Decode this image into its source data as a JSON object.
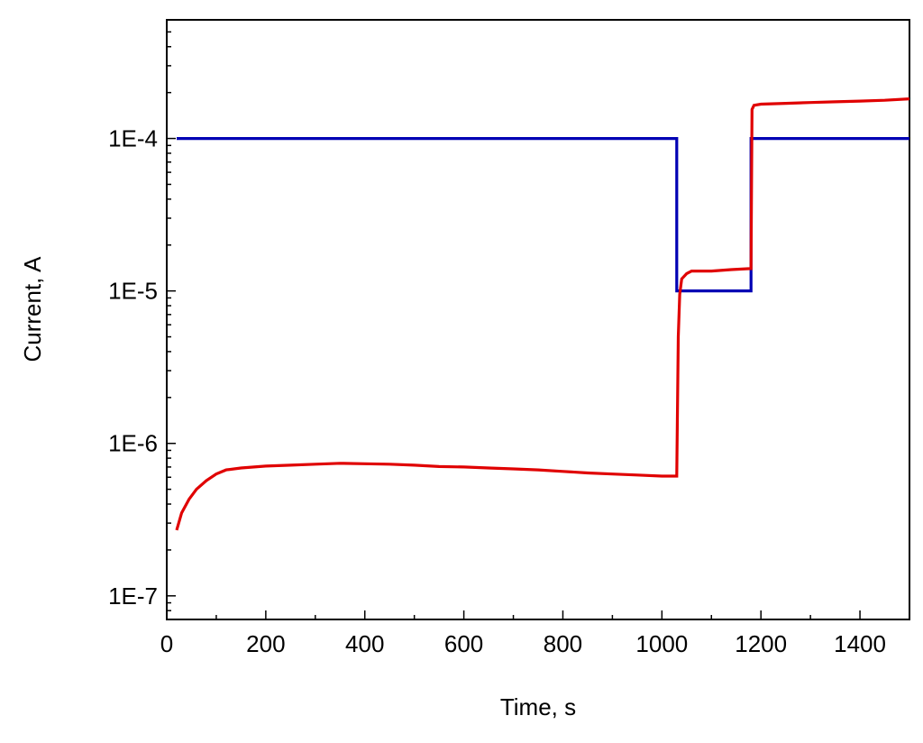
{
  "chart_data": {
    "type": "line",
    "title": "",
    "xlabel": "Time, s",
    "ylabel": "Current, A",
    "xlim": [
      0,
      1500
    ],
    "ylim": [
      7e-08,
      0.0006
    ],
    "yscale": "log",
    "grid": false,
    "legend": "none",
    "x_ticks": [
      {
        "value": 0,
        "label": "0"
      },
      {
        "value": 200,
        "label": "200"
      },
      {
        "value": 400,
        "label": "400"
      },
      {
        "value": 600,
        "label": "600"
      },
      {
        "value": 800,
        "label": "800"
      },
      {
        "value": 1000,
        "label": "1000"
      },
      {
        "value": 1200,
        "label": "1200"
      },
      {
        "value": 1400,
        "label": "1400"
      }
    ],
    "y_ticks": [
      {
        "value": 1e-07,
        "label": "1E-7"
      },
      {
        "value": 1e-06,
        "label": "1E-6"
      },
      {
        "value": 1e-05,
        "label": "1E-5"
      },
      {
        "value": 0.0001,
        "label": "1E-4"
      }
    ],
    "series": [
      {
        "color": "#0000b4",
        "x": [
          20,
          1030,
          1030,
          1180,
          1180,
          1500
        ],
        "y": [
          0.0001,
          0.0001,
          1e-05,
          1e-05,
          0.0001,
          0.0001
        ]
      },
      {
        "color": "#e00000",
        "x": [
          20,
          30,
          45,
          60,
          80,
          100,
          120,
          150,
          200,
          250,
          300,
          350,
          400,
          450,
          500,
          550,
          600,
          650,
          700,
          750,
          800,
          850,
          900,
          950,
          1000,
          1030,
          1033,
          1036,
          1040,
          1050,
          1060,
          1080,
          1100,
          1140,
          1178,
          1180,
          1182,
          1186,
          1200,
          1250,
          1300,
          1350,
          1400,
          1450,
          1500
        ],
        "y": [
          2.7e-07,
          3.5e-07,
          4.3e-07,
          5e-07,
          5.7e-07,
          6.3e-07,
          6.7e-07,
          6.9e-07,
          7.1e-07,
          7.2e-07,
          7.3e-07,
          7.4e-07,
          7.35e-07,
          7.3e-07,
          7.2e-07,
          7.05e-07,
          7e-07,
          6.9e-07,
          6.8e-07,
          6.7e-07,
          6.55e-07,
          6.4e-07,
          6.3e-07,
          6.2e-07,
          6.1e-07,
          6.1e-07,
          5e-06,
          9.5e-06,
          1.2e-05,
          1.3e-05,
          1.35e-05,
          1.35e-05,
          1.35e-05,
          1.38e-05,
          1.4e-05,
          1.4e-05,
          0.000155,
          0.000165,
          0.000168,
          0.00017,
          0.000172,
          0.000174,
          0.000176,
          0.000178,
          0.000182
        ]
      }
    ]
  }
}
